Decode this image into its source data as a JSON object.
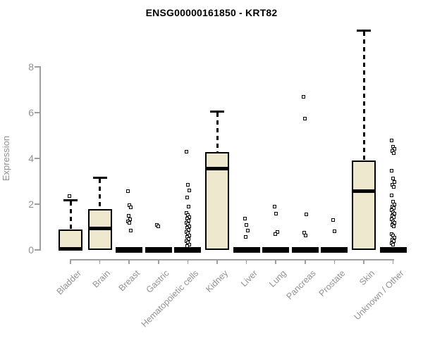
{
  "chart_data": {
    "type": "boxplot",
    "title": "ENSG00000161850 - KRT82",
    "ylabel": "Expression",
    "xlabel": "",
    "ylim": [
      0,
      9.7
    ],
    "yticks": [
      0,
      2,
      4,
      6,
      8
    ],
    "grid": false,
    "legend": false,
    "box_fill": "#EDE8CE",
    "box_border": "#000000",
    "axis_color": "#9E9E9E",
    "label_color": "#919191",
    "categories": [
      "Bladder",
      "Brain",
      "Breast",
      "Gastric",
      "Hematopoietic cells",
      "Kidney",
      "Liver",
      "Lung",
      "Pancreas",
      "Prostate",
      "Skin",
      "Unknown / Other"
    ],
    "series": [
      {
        "name": "Bladder",
        "q1": 0,
        "median": 0.06,
        "q3": 0.89,
        "whisker_low": 0,
        "whisker_high": 2.18,
        "outliers": [
          2.35
        ]
      },
      {
        "name": "Brain",
        "q1": 0,
        "median": 0.95,
        "q3": 1.78,
        "whisker_low": 0,
        "whisker_high": 3.17,
        "outliers": []
      },
      {
        "name": "Breast",
        "q1": 0,
        "median": 0,
        "q3": 0,
        "whisker_low": 0,
        "whisker_high": 0,
        "outliers": [
          2.58,
          1.94,
          1.85,
          1.48,
          1.35,
          1.26,
          1.17,
          0.86
        ]
      },
      {
        "name": "Gastric",
        "q1": 0,
        "median": 0,
        "q3": 0,
        "whisker_low": 0,
        "whisker_high": 0,
        "outliers": [
          1.1,
          1.04
        ]
      },
      {
        "name": "Hematopoietic cells",
        "q1": 0,
        "median": 0,
        "q3": 0,
        "whisker_low": 0,
        "whisker_high": 0,
        "outliers": [
          4.28,
          2.86,
          2.6,
          2.3,
          1.9,
          1.62,
          1.52,
          1.44,
          1.36,
          1.28,
          1.2,
          1.12,
          1.04,
          0.96,
          0.88,
          0.8,
          0.72,
          0.64,
          0.56,
          0.48,
          0.4,
          0.32,
          0.24,
          0.16
        ]
      },
      {
        "name": "Kidney",
        "q1": 0,
        "median": 3.54,
        "q3": 4.28,
        "whisker_low": 0,
        "whisker_high": 6.06,
        "outliers": []
      },
      {
        "name": "Liver",
        "q1": 0,
        "median": 0,
        "q3": 0,
        "whisker_low": 0,
        "whisker_high": 0,
        "outliers": [
          1.38,
          1.1,
          0.86,
          0.58
        ]
      },
      {
        "name": "Lung",
        "q1": 0,
        "median": 0,
        "q3": 0,
        "whisker_low": 0,
        "whisker_high": 0,
        "outliers": [
          1.9,
          1.6,
          0.8,
          0.68
        ]
      },
      {
        "name": "Pancreas",
        "q1": 0,
        "median": 0,
        "q3": 0,
        "whisker_low": 0,
        "whisker_high": 0,
        "outliers": [
          6.7,
          5.75,
          1.54,
          0.76,
          0.64
        ]
      },
      {
        "name": "Prostate",
        "q1": 0,
        "median": 0,
        "q3": 0,
        "whisker_low": 0,
        "whisker_high": 0,
        "outliers": [
          1.32,
          0.83
        ]
      },
      {
        "name": "Skin",
        "q1": 0,
        "median": 2.58,
        "q3": 3.9,
        "whisker_low": 0,
        "whisker_high": 9.6,
        "outliers": []
      },
      {
        "name": "Unknown / Other",
        "q1": 0,
        "median": 0,
        "q3": 0,
        "whisker_low": 0,
        "whisker_high": 0,
        "outliers": [
          4.77,
          4.52,
          4.42,
          4.32,
          4.22,
          3.45,
          3.12,
          2.98,
          2.86,
          2.74,
          2.4,
          2.12,
          2.0,
          1.9,
          1.82,
          1.74,
          1.66,
          1.58,
          1.5,
          1.42,
          1.34,
          1.26,
          1.18,
          1.1,
          1.02,
          0.7,
          0.62,
          0.54,
          0.46,
          0.38,
          0.3,
          0.24
        ]
      }
    ]
  }
}
